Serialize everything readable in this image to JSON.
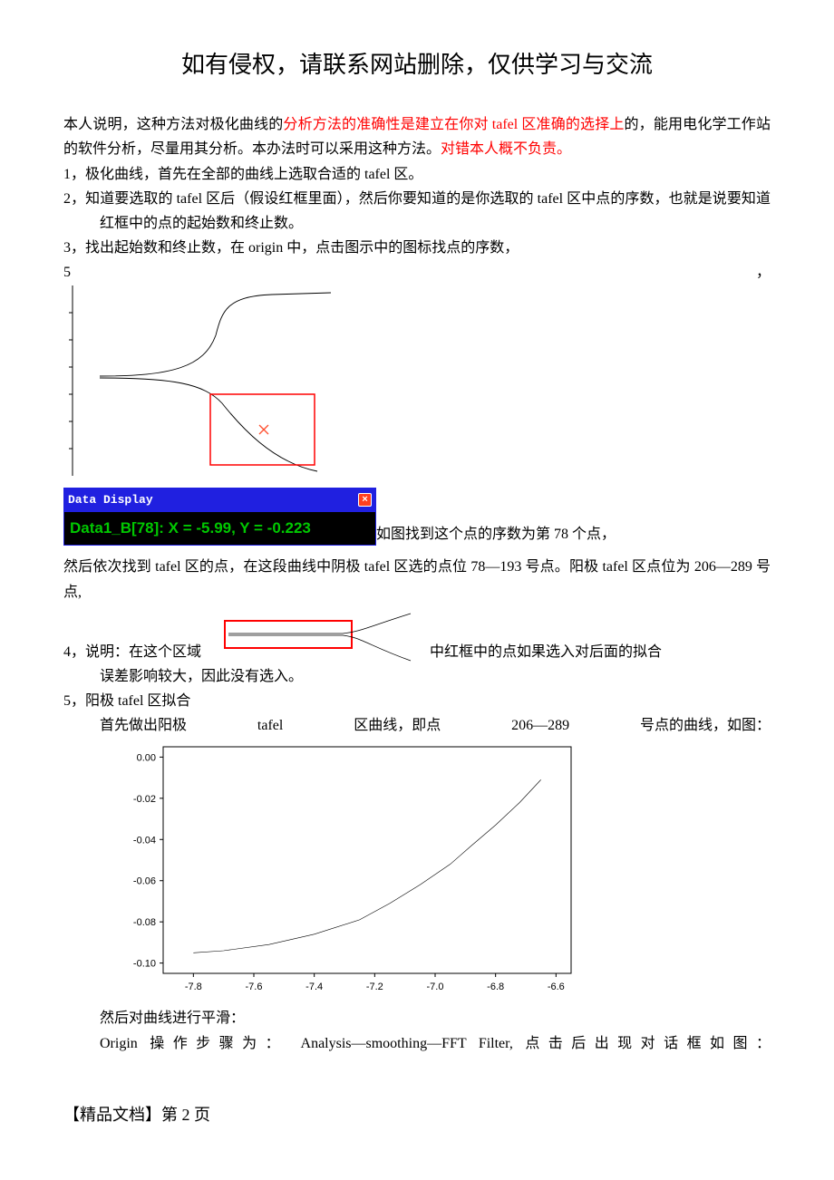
{
  "title": "如有侵权，请联系网站删除，仅供学习与交流",
  "intro": {
    "p1a": "本人说明，这种方法对极化曲线的",
    "p1b": "分析方法的准确性是建立在你对 tafel 区准确的选择上",
    "p1c": "的，能用电化学工作站的软件分析，尽量用其分析。本办法时可以采用这种方法。",
    "p1d": "对错本人概不负责。"
  },
  "items": {
    "n1": "1，极化曲线，首先在全部的曲线上选取合适的 tafel 区。",
    "n2": "2，知道要选取的 tafel 区后（假设红框里面），然后你要知道的是你选取的 tafel 区中点的序数，也就是说要知道红框中的点的起始数和终止数。",
    "n3": "3，找出起始数和终止数，在 origin 中，点击图示中的图标找点的序数，",
    "n5_head": "5",
    "n5_tail": "，"
  },
  "fig1": {
    "red_box": {
      "stroke": "#ff0000",
      "fill": "none"
    },
    "marker_color": "#ff5030",
    "line_color": "#000000",
    "axis_color": "#000000"
  },
  "data_display": {
    "title": "Data Display",
    "body": "Data1_B[78]: X = -5.99, Y = -0.223",
    "bg_title": "#2020e0",
    "bg_body": "#000000",
    "fg_body": "#00c800",
    "close_bg": "#ff4020"
  },
  "after_dd": "如图找到这个点的序数为第 78 个点，",
  "para_mid": "然后依次找到 tafel 区的点，在这段曲线中阴极 tafel 区选的点位 78—193 号点。阳极 tafel 区点位为 206—289 号点,",
  "item4": {
    "pre": "4，说明：在这个区域",
    "post": "中红框中的点如果选入对后面的拟合",
    "line2": "误差影响较大，因此没有选入。",
    "red_box_stroke": "#ff0000"
  },
  "item5": {
    "head": "5，阳极 tafel 区拟合",
    "l1a": "首先做出阳极",
    "l1b": "tafel",
    "l1c": "区曲线，即点",
    "l1d": "206—289",
    "l1e": "号点的曲线，如图："
  },
  "chart": {
    "type": "line",
    "background_color": "#ffffff",
    "axis_color": "#000000",
    "yticks": [
      "0.00",
      "-0.02",
      "-0.04",
      "-0.06",
      "-0.08",
      "-0.10"
    ],
    "xticks": [
      "-7.8",
      "-7.6",
      "-7.4",
      "-7.2",
      "-7.0",
      "-6.8",
      "-6.6"
    ],
    "xlim": [
      -7.9,
      -6.55
    ],
    "ylim": [
      -0.105,
      0.005
    ],
    "tick_fontsize": 11,
    "line_color": "#000000",
    "line_width": 0.6,
    "series": [
      {
        "x": -7.8,
        "y": -0.095
      },
      {
        "x": -7.7,
        "y": -0.094
      },
      {
        "x": -7.55,
        "y": -0.091
      },
      {
        "x": -7.4,
        "y": -0.086
      },
      {
        "x": -7.25,
        "y": -0.079
      },
      {
        "x": -7.15,
        "y": -0.071
      },
      {
        "x": -7.05,
        "y": -0.062
      },
      {
        "x": -6.95,
        "y": -0.052
      },
      {
        "x": -6.88,
        "y": -0.043
      },
      {
        "x": -6.8,
        "y": -0.033
      },
      {
        "x": -6.72,
        "y": -0.022
      },
      {
        "x": -6.65,
        "y": -0.011
      }
    ]
  },
  "after_chart": {
    "l1": "然后对曲线进行平滑：",
    "l2": "Origin 操作步骤为： Analysis—smoothing—FFT Filter, 点击后出现对话框如图："
  },
  "footer": "【精品文档】第 2 页"
}
